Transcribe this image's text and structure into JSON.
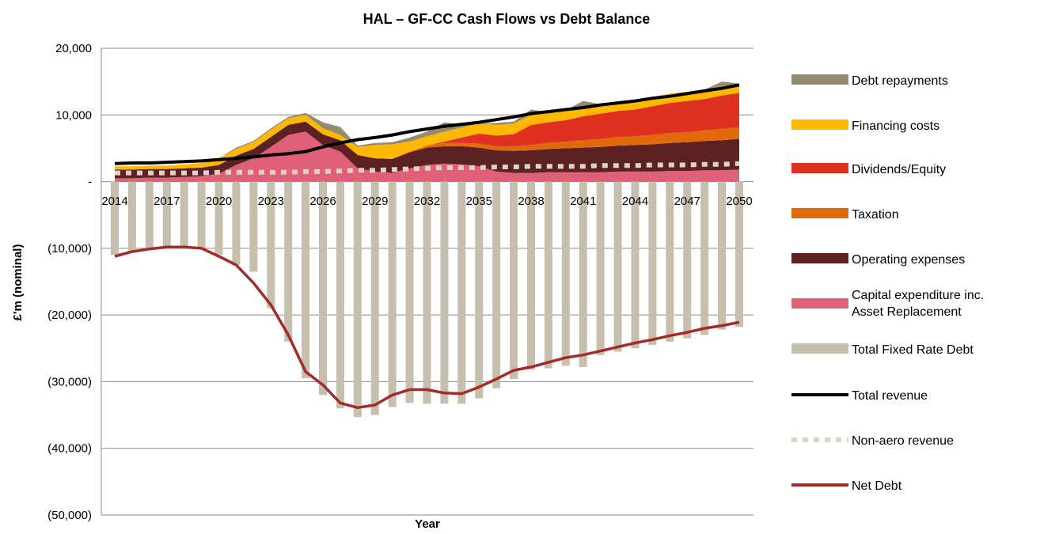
{
  "chart_data": {
    "type": "area",
    "title": "HAL – GF-CC Cash Flows vs Debt Balance",
    "xlabel": "Year",
    "ylabel": "£'m (nominal)",
    "ylim": [
      -50000,
      20000
    ],
    "yticks": [
      20000,
      10000,
      0,
      -10000,
      -20000,
      -30000,
      -40000,
      -50000
    ],
    "ytick_labels": [
      "20,000",
      "10,000",
      "-",
      "(10,000)",
      "(20,000)",
      "(30,000)",
      "(40,000)",
      "(50,000)"
    ],
    "xtick_labels": [
      "2014",
      "2017",
      "2020",
      "2023",
      "2026",
      "2029",
      "2032",
      "2035",
      "2038",
      "2041",
      "2044",
      "2047",
      "2050"
    ],
    "x": [
      2014,
      2015,
      2016,
      2017,
      2018,
      2019,
      2020,
      2021,
      2022,
      2023,
      2024,
      2025,
      2026,
      2027,
      2028,
      2029,
      2030,
      2031,
      2032,
      2033,
      2034,
      2035,
      2036,
      2037,
      2038,
      2039,
      2040,
      2041,
      2042,
      2043,
      2044,
      2045,
      2046,
      2047,
      2048,
      2049,
      2050
    ],
    "grid": "horizontal",
    "legend_position": "right",
    "stacked_series": [
      {
        "name": "Capital expenditure inc. Asset Replacement",
        "color": "#e0607a",
        "values": [
          500,
          500,
          600,
          600,
          700,
          800,
          1200,
          2500,
          3500,
          5200,
          7000,
          7500,
          5500,
          4500,
          2000,
          1500,
          1300,
          2000,
          2500,
          2700,
          2600,
          2300,
          1500,
          1300,
          1300,
          1400,
          1400,
          1400,
          1400,
          1500,
          1500,
          1500,
          1600,
          1600,
          1700,
          1700,
          1800
        ]
      },
      {
        "name": "Operating expenses",
        "color": "#5c2222",
        "values": [
          1300,
          1300,
          1300,
          1300,
          1300,
          1300,
          1300,
          1400,
          1400,
          1500,
          1500,
          1500,
          1600,
          1700,
          2000,
          2000,
          2100,
          2400,
          2600,
          2600,
          2700,
          2800,
          3200,
          3300,
          3400,
          3500,
          3600,
          3700,
          3800,
          3900,
          4000,
          4100,
          4200,
          4300,
          4400,
          4500,
          4600
        ]
      },
      {
        "name": "Taxation",
        "color": "#e06a0a",
        "values": [
          0,
          0,
          0,
          0,
          0,
          0,
          0,
          0,
          0,
          0,
          0,
          0,
          0,
          0,
          0,
          0,
          0,
          100,
          300,
          500,
          500,
          600,
          600,
          700,
          800,
          900,
          1000,
          1100,
          1200,
          1300,
          1300,
          1400,
          1500,
          1500,
          1600,
          1700,
          1700
        ]
      },
      {
        "name": "Dividends/Equity",
        "color": "#e03020",
        "values": [
          0,
          0,
          0,
          0,
          0,
          0,
          0,
          0,
          0,
          0,
          0,
          0,
          0,
          0,
          0,
          0,
          0,
          0,
          0,
          200,
          800,
          1500,
          1600,
          1800,
          3000,
          3100,
          3200,
          3600,
          3800,
          3900,
          4000,
          4300,
          4500,
          4700,
          4700,
          5000,
          5200
        ]
      },
      {
        "name": "Financing costs",
        "color": "#ffb800",
        "values": [
          500,
          500,
          500,
          500,
          600,
          700,
          1000,
          1000,
          1000,
          1100,
          1000,
          1000,
          900,
          800,
          1200,
          2000,
          2200,
          1500,
          1400,
          1500,
          1500,
          1500,
          1600,
          1600,
          1500,
          1500,
          1500,
          1500,
          1400,
          1400,
          1400,
          1400,
          1400,
          1400,
          1400,
          1400,
          1400
        ]
      },
      {
        "name": "Debt repayments",
        "color": "#948a6e",
        "values": [
          0,
          0,
          0,
          0,
          0,
          0,
          0,
          200,
          200,
          200,
          200,
          300,
          900,
          1200,
          200,
          300,
          300,
          600,
          700,
          1400,
          500,
          0,
          300,
          300,
          800,
          0,
          0,
          800,
          0,
          0,
          0,
          0,
          0,
          0,
          0,
          700,
          0
        ]
      }
    ],
    "bar_series": {
      "name": "Total Fixed Rate Debt",
      "color": "#c6bfae",
      "values": [
        -11000,
        -10500,
        -10200,
        -9900,
        -9900,
        -10000,
        -11000,
        -12500,
        -13500,
        -19000,
        -24000,
        -29500,
        -32000,
        -34000,
        -35300,
        -35000,
        -33800,
        -33200,
        -33300,
        -33300,
        -33300,
        -32500,
        -31000,
        -29600,
        -28200,
        -28000,
        -27600,
        -27800,
        -26000,
        -25500,
        -25000,
        -24500,
        -24000,
        -23500,
        -23000,
        -22200,
        -21800
      ]
    },
    "line_series": [
      {
        "name": "Total revenue",
        "color": "#000000",
        "style": "solid",
        "values": [
          2700,
          2800,
          2800,
          2900,
          3000,
          3100,
          3300,
          3500,
          3700,
          4000,
          4200,
          4500,
          5200,
          5800,
          6300,
          6600,
          7000,
          7500,
          7900,
          8300,
          8600,
          8900,
          9300,
          9700,
          10200,
          10500,
          10800,
          11100,
          11500,
          11800,
          12100,
          12500,
          12800,
          13200,
          13600,
          14000,
          14500
        ]
      },
      {
        "name": "Non-aero revenue",
        "color": "#d9d3c8",
        "style": "dashed",
        "values": [
          1300,
          1300,
          1300,
          1300,
          1300,
          1300,
          1400,
          1400,
          1400,
          1400,
          1400,
          1500,
          1500,
          1600,
          1700,
          1700,
          1800,
          1900,
          2000,
          2100,
          2100,
          2100,
          2200,
          2200,
          2300,
          2300,
          2300,
          2300,
          2400,
          2400,
          2400,
          2500,
          2500,
          2500,
          2600,
          2600,
          2700
        ]
      },
      {
        "name": "Net Debt",
        "color": "#a52a2a",
        "style": "solid",
        "values": [
          -11200,
          -10500,
          -10100,
          -9800,
          -9800,
          -10000,
          -11200,
          -12500,
          -15200,
          -18500,
          -23000,
          -28500,
          -30500,
          -33200,
          -33900,
          -33500,
          -32000,
          -31200,
          -31200,
          -31700,
          -31800,
          -30800,
          -29600,
          -28300,
          -27800,
          -27100,
          -26400,
          -26000,
          -25400,
          -24800,
          -24200,
          -23700,
          -23100,
          -22600,
          -22000,
          -21600,
          -21100
        ]
      }
    ],
    "legend": [
      {
        "label": "Debt repayments",
        "kind": "swatch",
        "color": "#948a6e"
      },
      {
        "label": "Financing costs",
        "kind": "swatch",
        "color": "#ffb800"
      },
      {
        "label": "Dividends/Equity",
        "kind": "swatch",
        "color": "#e03020"
      },
      {
        "label": "Taxation",
        "kind": "swatch",
        "color": "#e06a0a"
      },
      {
        "label": "Operating expenses",
        "kind": "swatch",
        "color": "#5c2222"
      },
      {
        "label": "Capital expenditure inc.",
        "label2": "Asset Replacement",
        "kind": "swatch",
        "color": "#e0607a"
      },
      {
        "label": "Total Fixed Rate Debt",
        "kind": "swatch",
        "color": "#c6bfae"
      },
      {
        "label": "Total revenue",
        "kind": "line",
        "color": "#000000"
      },
      {
        "label": "Non-aero revenue",
        "kind": "dashed",
        "color": "#d9d3c8"
      },
      {
        "label": "Net Debt",
        "kind": "line",
        "color": "#a52a2a"
      }
    ]
  }
}
